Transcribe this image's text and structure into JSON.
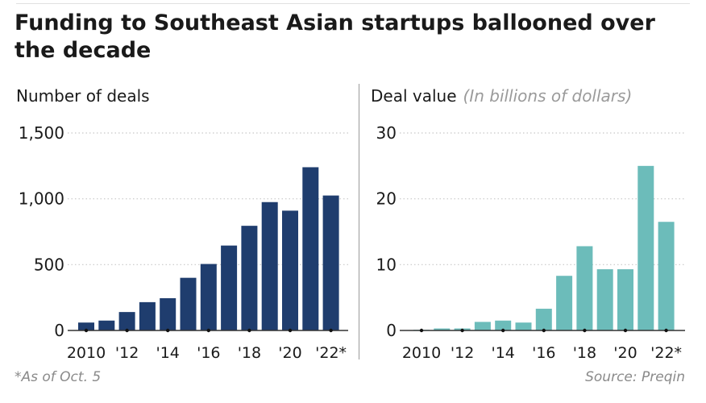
{
  "title": "Funding to Southeast Asian startups ballooned over the decade",
  "footnote": "*As of Oct. 5",
  "source": "Source: Preqin",
  "colors": {
    "deals_bar": "#1f3d6e",
    "value_bar": "#6cbcba",
    "grid": "#c8c8c8",
    "axis": "#333333"
  },
  "chart_data": [
    {
      "type": "bar",
      "title": "Number of deals",
      "subtitle": "",
      "categories": [
        "2010",
        "2011",
        "2012",
        "2013",
        "2014",
        "2015",
        "2016",
        "2017",
        "2018",
        "2019",
        "2020",
        "2021",
        "2022"
      ],
      "values": [
        60,
        75,
        140,
        215,
        245,
        400,
        505,
        645,
        795,
        975,
        910,
        1240,
        1025
      ],
      "yticks": [
        0,
        500,
        1000,
        1500
      ],
      "ytick_labels": [
        "0",
        "500",
        "1,000",
        "1,500"
      ],
      "ylim": [
        0,
        1500
      ],
      "xtick_labels": [
        "2010",
        "'12",
        "'14",
        "'16",
        "'18",
        "'20",
        "'22*"
      ],
      "grid": true
    },
    {
      "type": "bar",
      "title": "Deal value",
      "subtitle": "(In billions of dollars)",
      "categories": [
        "2010",
        "2011",
        "2012",
        "2013",
        "2014",
        "2015",
        "2016",
        "2017",
        "2018",
        "2019",
        "2020",
        "2021",
        "2022"
      ],
      "values": [
        0.1,
        0.3,
        0.3,
        1.3,
        1.5,
        1.2,
        3.3,
        8.3,
        12.8,
        9.3,
        9.3,
        25,
        16.5
      ],
      "yticks": [
        0,
        10,
        20,
        30
      ],
      "ytick_labels": [
        "0",
        "10",
        "20",
        "30"
      ],
      "ylim": [
        0,
        30
      ],
      "xtick_labels": [
        "2010",
        "'12",
        "'14",
        "'16",
        "'18",
        "'20",
        "'22*"
      ],
      "grid": true
    }
  ]
}
